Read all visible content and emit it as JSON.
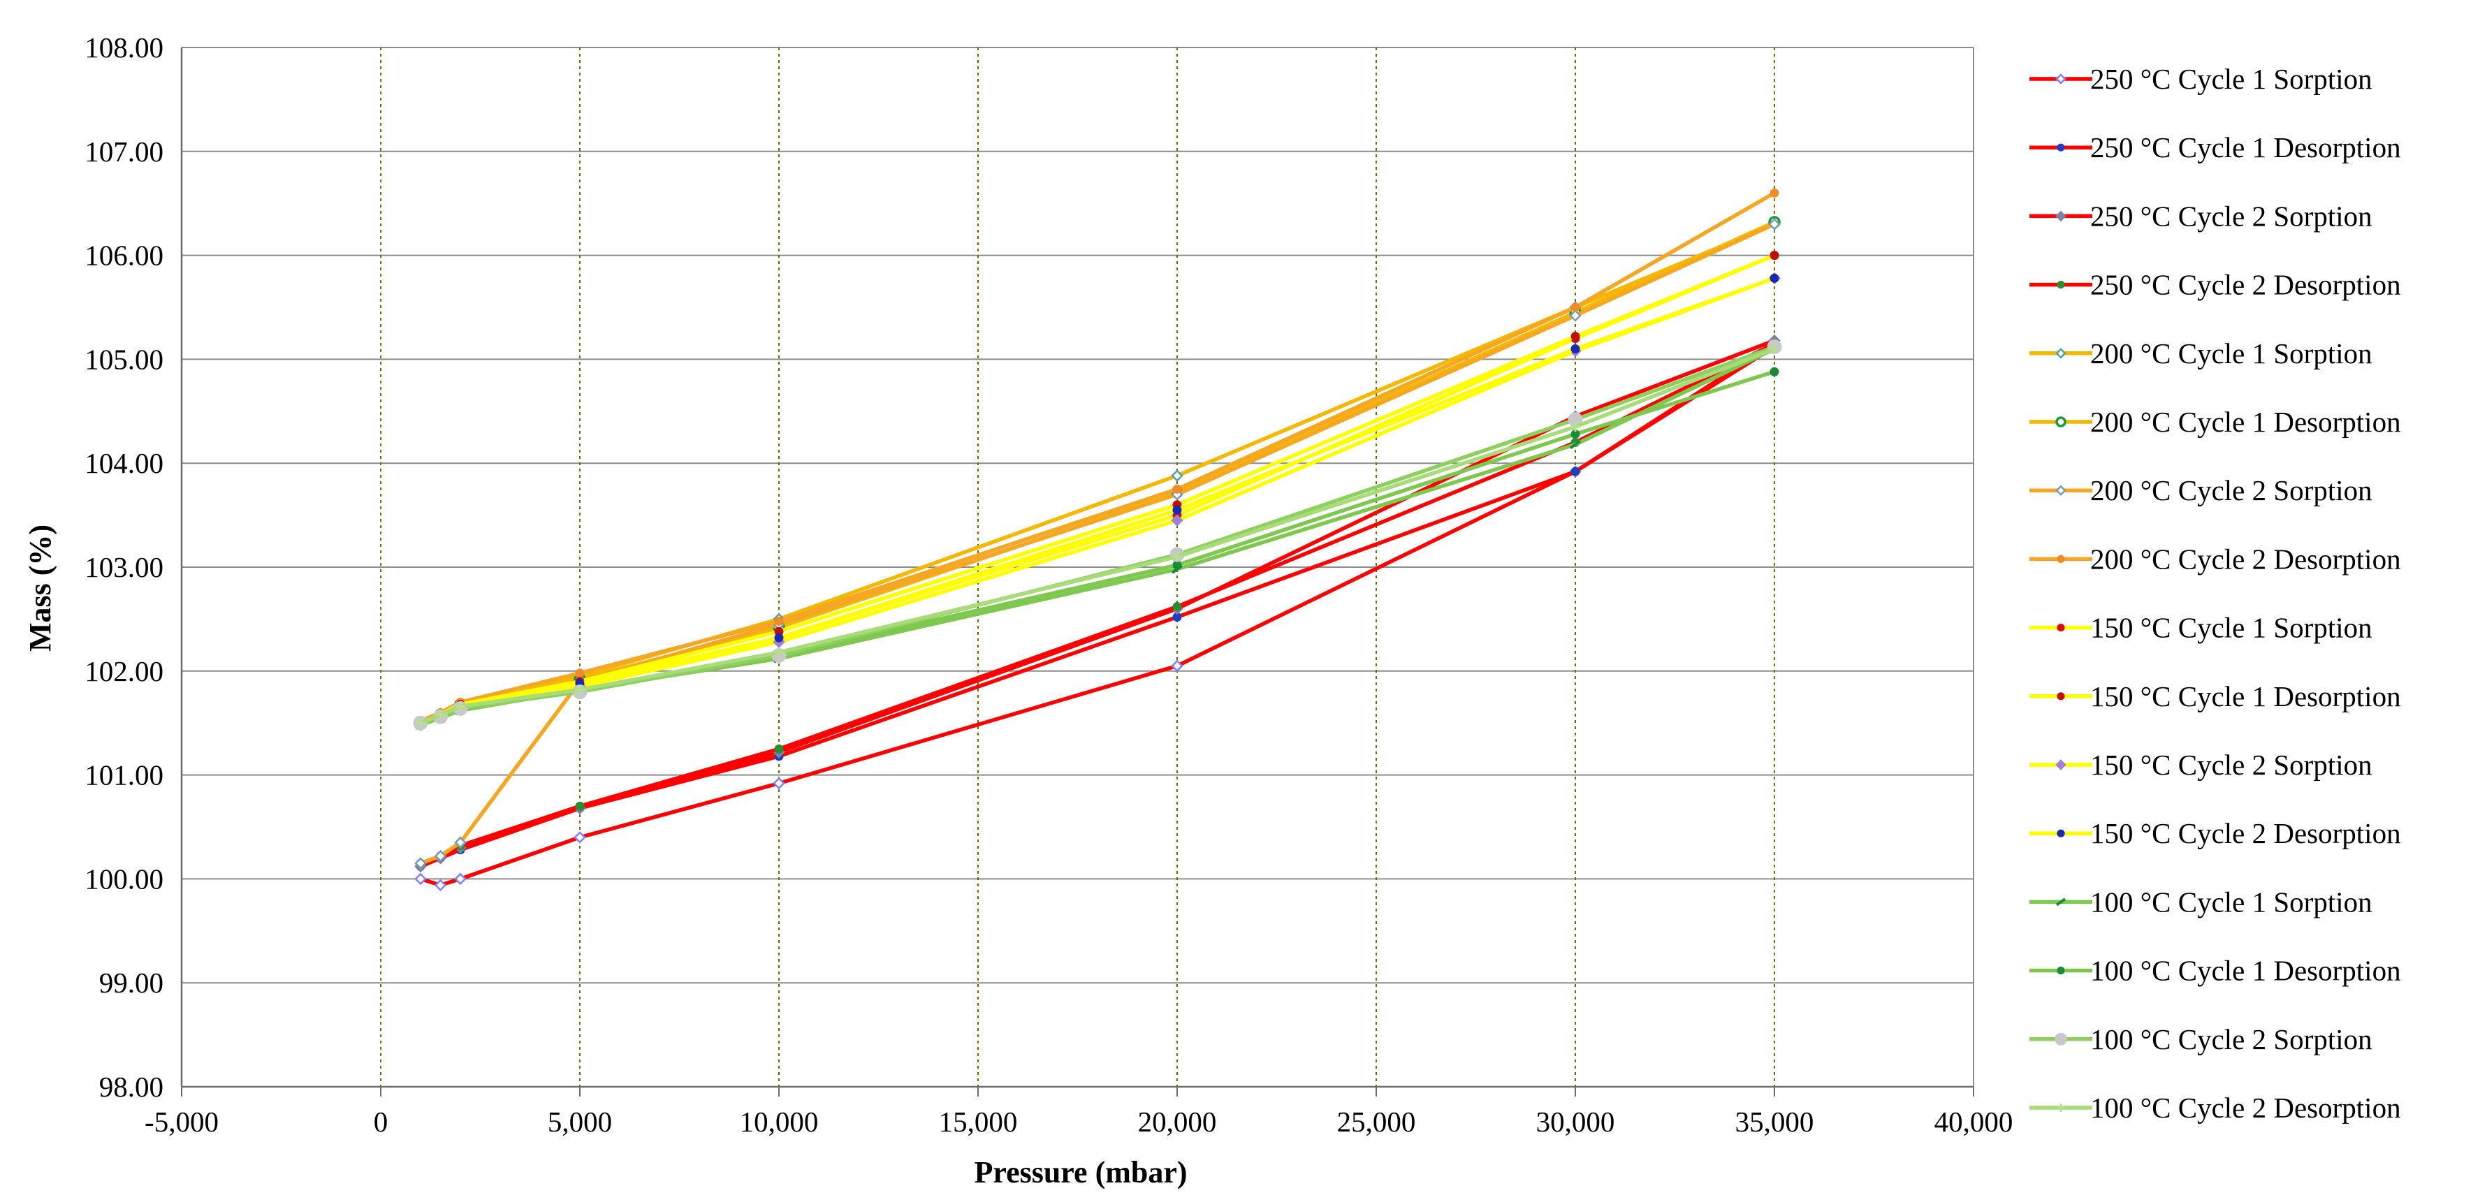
{
  "chart_data": {
    "type": "line",
    "title": "",
    "xlabel": "Pressure (mbar)",
    "ylabel": "Mass (%)",
    "xlim": [
      -5000,
      40000
    ],
    "ylim": [
      98,
      108
    ],
    "xticks": [
      -5000,
      0,
      5000,
      10000,
      15000,
      20000,
      25000,
      30000,
      35000,
      40000
    ],
    "xtick_labels": [
      "-5,000",
      "0",
      "5,000",
      "10,000",
      "15,000",
      "20,000",
      "25,000",
      "30,000",
      "35,000",
      "40,000"
    ],
    "yticks": [
      98,
      99,
      100,
      101,
      102,
      103,
      104,
      105,
      106,
      107,
      108
    ],
    "ytick_labels": [
      "98.00",
      "99.00",
      "100.00",
      "101.00",
      "102.00",
      "103.00",
      "104.00",
      "105.00",
      "106.00",
      "107.00",
      "108.00"
    ],
    "grid": {
      "horizontal": true,
      "vertical": true,
      "vertical_style": "dotted"
    },
    "legend_position": "right",
    "series": [
      {
        "name": "250 °C Cycle 1 Sorption",
        "color": "#ff0000",
        "marker_color": "#8080ff",
        "marker": "diamond-open",
        "points": [
          [
            1000,
            100.0
          ],
          [
            1500,
            99.94
          ],
          [
            2000,
            100.0
          ],
          [
            5000,
            100.4
          ],
          [
            10000,
            100.92
          ],
          [
            20000,
            102.05
          ],
          [
            30000,
            103.92
          ],
          [
            35000,
            105.12
          ]
        ]
      },
      {
        "name": "250 °C Cycle 1 Desorption",
        "color": "#ff0000",
        "marker_color": "#1f3fbf",
        "marker": "dot",
        "points": [
          [
            35000,
            105.15
          ],
          [
            30000,
            103.92
          ],
          [
            20000,
            102.52
          ],
          [
            10000,
            101.18
          ],
          [
            5000,
            100.68
          ],
          [
            2000,
            100.28
          ],
          [
            1500,
            100.2
          ],
          [
            1000,
            100.12
          ]
        ]
      },
      {
        "name": "250 °C Cycle 2 Sorption",
        "color": "#ff0000",
        "marker_color": "#8080a0",
        "marker": "diamond",
        "points": [
          [
            1000,
            100.12
          ],
          [
            1500,
            100.2
          ],
          [
            2000,
            100.3
          ],
          [
            5000,
            100.68
          ],
          [
            10000,
            101.22
          ],
          [
            20000,
            102.6
          ],
          [
            30000,
            104.45
          ],
          [
            35000,
            105.18
          ]
        ]
      },
      {
        "name": "250 °C Cycle 2 Desorption",
        "color": "#ff0000",
        "marker_color": "#2e8b2e",
        "marker": "dot",
        "points": [
          [
            35000,
            105.15
          ],
          [
            30000,
            104.2
          ],
          [
            20000,
            102.62
          ],
          [
            10000,
            101.25
          ],
          [
            5000,
            100.7
          ],
          [
            2000,
            100.32
          ],
          [
            1500,
            100.22
          ],
          [
            1000,
            100.15
          ]
        ]
      },
      {
        "name": "200 °C Cycle 1 Sorption",
        "color": "#f5b800",
        "marker_color": "#4fa0a0",
        "marker": "diamond-open",
        "points": [
          [
            1000,
            101.5
          ],
          [
            1500,
            101.55
          ],
          [
            2000,
            101.65
          ],
          [
            5000,
            101.95
          ],
          [
            10000,
            102.5
          ],
          [
            20000,
            103.88
          ],
          [
            30000,
            105.5
          ],
          [
            35000,
            106.3
          ]
        ]
      },
      {
        "name": "200 °C Cycle 1 Desorption",
        "color": "#f5b800",
        "marker_color": "#1a9a3a",
        "marker": "circle-open",
        "points": [
          [
            35000,
            106.32
          ],
          [
            30000,
            105.45
          ],
          [
            20000,
            103.72
          ],
          [
            10000,
            102.42
          ],
          [
            5000,
            101.92
          ],
          [
            2000,
            101.68
          ],
          [
            1500,
            101.58
          ],
          [
            1000,
            101.5
          ]
        ]
      },
      {
        "name": "200 °C Cycle 2 Sorption",
        "color": "#f5a623",
        "marker_color": "#7a9ab0",
        "marker": "diamond-open",
        "points": [
          [
            1000,
            100.15
          ],
          [
            1500,
            100.22
          ],
          [
            2000,
            100.35
          ],
          [
            5000,
            101.9
          ],
          [
            10000,
            102.45
          ],
          [
            20000,
            103.7
          ],
          [
            30000,
            105.42
          ],
          [
            35000,
            106.3
          ]
        ]
      },
      {
        "name": "200 °C Cycle 2 Desorption",
        "color": "#f5a623",
        "marker_color": "#f08c28",
        "marker": "dot",
        "points": [
          [
            35000,
            106.6
          ],
          [
            30000,
            105.5
          ],
          [
            20000,
            103.75
          ],
          [
            10000,
            102.48
          ],
          [
            5000,
            101.98
          ],
          [
            2000,
            101.7
          ],
          [
            1500,
            101.6
          ],
          [
            1000,
            101.52
          ]
        ]
      },
      {
        "name": "150 °C Cycle 1 Sorption",
        "color": "#ffff00",
        "marker_color": "#d01010",
        "marker": "dot",
        "points": [
          [
            1000,
            101.48
          ],
          [
            1500,
            101.55
          ],
          [
            2000,
            101.65
          ],
          [
            5000,
            101.88
          ],
          [
            10000,
            102.32
          ],
          [
            20000,
            103.5
          ],
          [
            30000,
            105.2
          ],
          [
            35000,
            106.0
          ]
        ]
      },
      {
        "name": "150 °C Cycle 1 Desorption",
        "color": "#ffff00",
        "marker_color": "#c01000",
        "marker": "dot",
        "points": [
          [
            35000,
            106.0
          ],
          [
            30000,
            105.22
          ],
          [
            20000,
            103.6
          ],
          [
            10000,
            102.38
          ],
          [
            5000,
            101.9
          ],
          [
            2000,
            101.68
          ],
          [
            1500,
            101.58
          ],
          [
            1000,
            101.5
          ]
        ]
      },
      {
        "name": "150 °C Cycle 2 Sorption",
        "color": "#ffff00",
        "marker_color": "#a080d0",
        "marker": "diamond",
        "points": [
          [
            1000,
            101.48
          ],
          [
            1500,
            101.55
          ],
          [
            2000,
            101.66
          ],
          [
            5000,
            101.85
          ],
          [
            10000,
            102.28
          ],
          [
            20000,
            103.45
          ],
          [
            30000,
            105.08
          ],
          [
            35000,
            105.78
          ]
        ]
      },
      {
        "name": "150 °C Cycle 2 Desorption",
        "color": "#ffff00",
        "marker_color": "#1a2ab0",
        "marker": "dot",
        "points": [
          [
            35000,
            105.78
          ],
          [
            30000,
            105.1
          ],
          [
            20000,
            103.55
          ],
          [
            10000,
            102.32
          ],
          [
            5000,
            101.88
          ],
          [
            2000,
            101.66
          ],
          [
            1500,
            101.56
          ],
          [
            1000,
            101.48
          ]
        ]
      },
      {
        "name": "100 °C Cycle 1 Sorption",
        "color": "#7ec850",
        "marker_color": "#1a8a3a",
        "marker": "dash",
        "points": [
          [
            1000,
            101.48
          ],
          [
            1500,
            101.55
          ],
          [
            2000,
            101.62
          ],
          [
            5000,
            101.82
          ],
          [
            10000,
            102.12
          ],
          [
            20000,
            102.98
          ],
          [
            30000,
            104.18
          ],
          [
            35000,
            105.1
          ]
        ]
      },
      {
        "name": "100 °C Cycle 1 Desorption",
        "color": "#7ec850",
        "marker_color": "#1a8a3a",
        "marker": "dot",
        "points": [
          [
            35000,
            104.88
          ],
          [
            30000,
            104.28
          ],
          [
            20000,
            103.02
          ],
          [
            10000,
            102.15
          ],
          [
            5000,
            101.82
          ],
          [
            2000,
            101.64
          ],
          [
            1500,
            101.56
          ],
          [
            1000,
            101.48
          ]
        ]
      },
      {
        "name": "100 °C Cycle 2 Sorption",
        "color": "#8ed060",
        "marker_color": "#c8c8c8",
        "marker": "circle-big",
        "points": [
          [
            1000,
            101.5
          ],
          [
            1500,
            101.56
          ],
          [
            2000,
            101.64
          ],
          [
            5000,
            101.8
          ],
          [
            10000,
            102.15
          ],
          [
            20000,
            103.12
          ],
          [
            30000,
            104.42
          ],
          [
            35000,
            105.12
          ]
        ]
      },
      {
        "name": "100 °C Cycle 2 Desorption",
        "color": "#a8dc78",
        "marker_color": "#b8e090",
        "marker": "plus",
        "points": [
          [
            35000,
            105.1
          ],
          [
            30000,
            104.35
          ],
          [
            20000,
            103.1
          ],
          [
            10000,
            102.18
          ],
          [
            5000,
            101.82
          ],
          [
            2000,
            101.66
          ],
          [
            1500,
            101.58
          ],
          [
            1000,
            101.5
          ]
        ]
      }
    ]
  }
}
